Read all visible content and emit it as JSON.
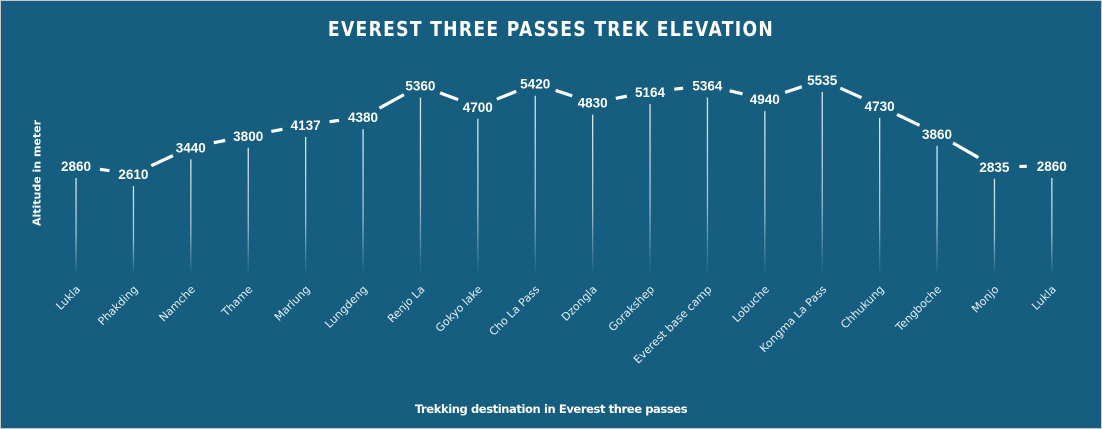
{
  "chart_data": {
    "type": "line",
    "title": "EVEREST THREE PASSES TREK ELEVATION",
    "xlabel": "Trekking destination in Everest three passes",
    "ylabel": "Altitude in meter",
    "categories": [
      "Lukla",
      "Phakding",
      "Namche",
      "Thame",
      "Marlung",
      "Lungdeng",
      "Renjo La",
      "Gokyo lake",
      "Cho La Pass",
      "Dzongla",
      "Gorakshep",
      "Everest base camp",
      "Lobuche",
      "Kongma La Pass",
      "Chhukung",
      "Tengboche",
      "Monjo",
      "Lukla"
    ],
    "series": [
      {
        "name": "Altitude",
        "values": [
          2860,
          2610,
          3440,
          3800,
          4137,
          4380,
          5360,
          4700,
          5420,
          4830,
          5164,
          5364,
          4940,
          5535,
          4730,
          3860,
          2835,
          2860
        ]
      }
    ],
    "data_labels": true,
    "drop_lines": true,
    "grid": false,
    "legend": "none",
    "colors": {
      "background": "#165e80",
      "line": "#ffffff",
      "text": "#ffffff"
    }
  }
}
